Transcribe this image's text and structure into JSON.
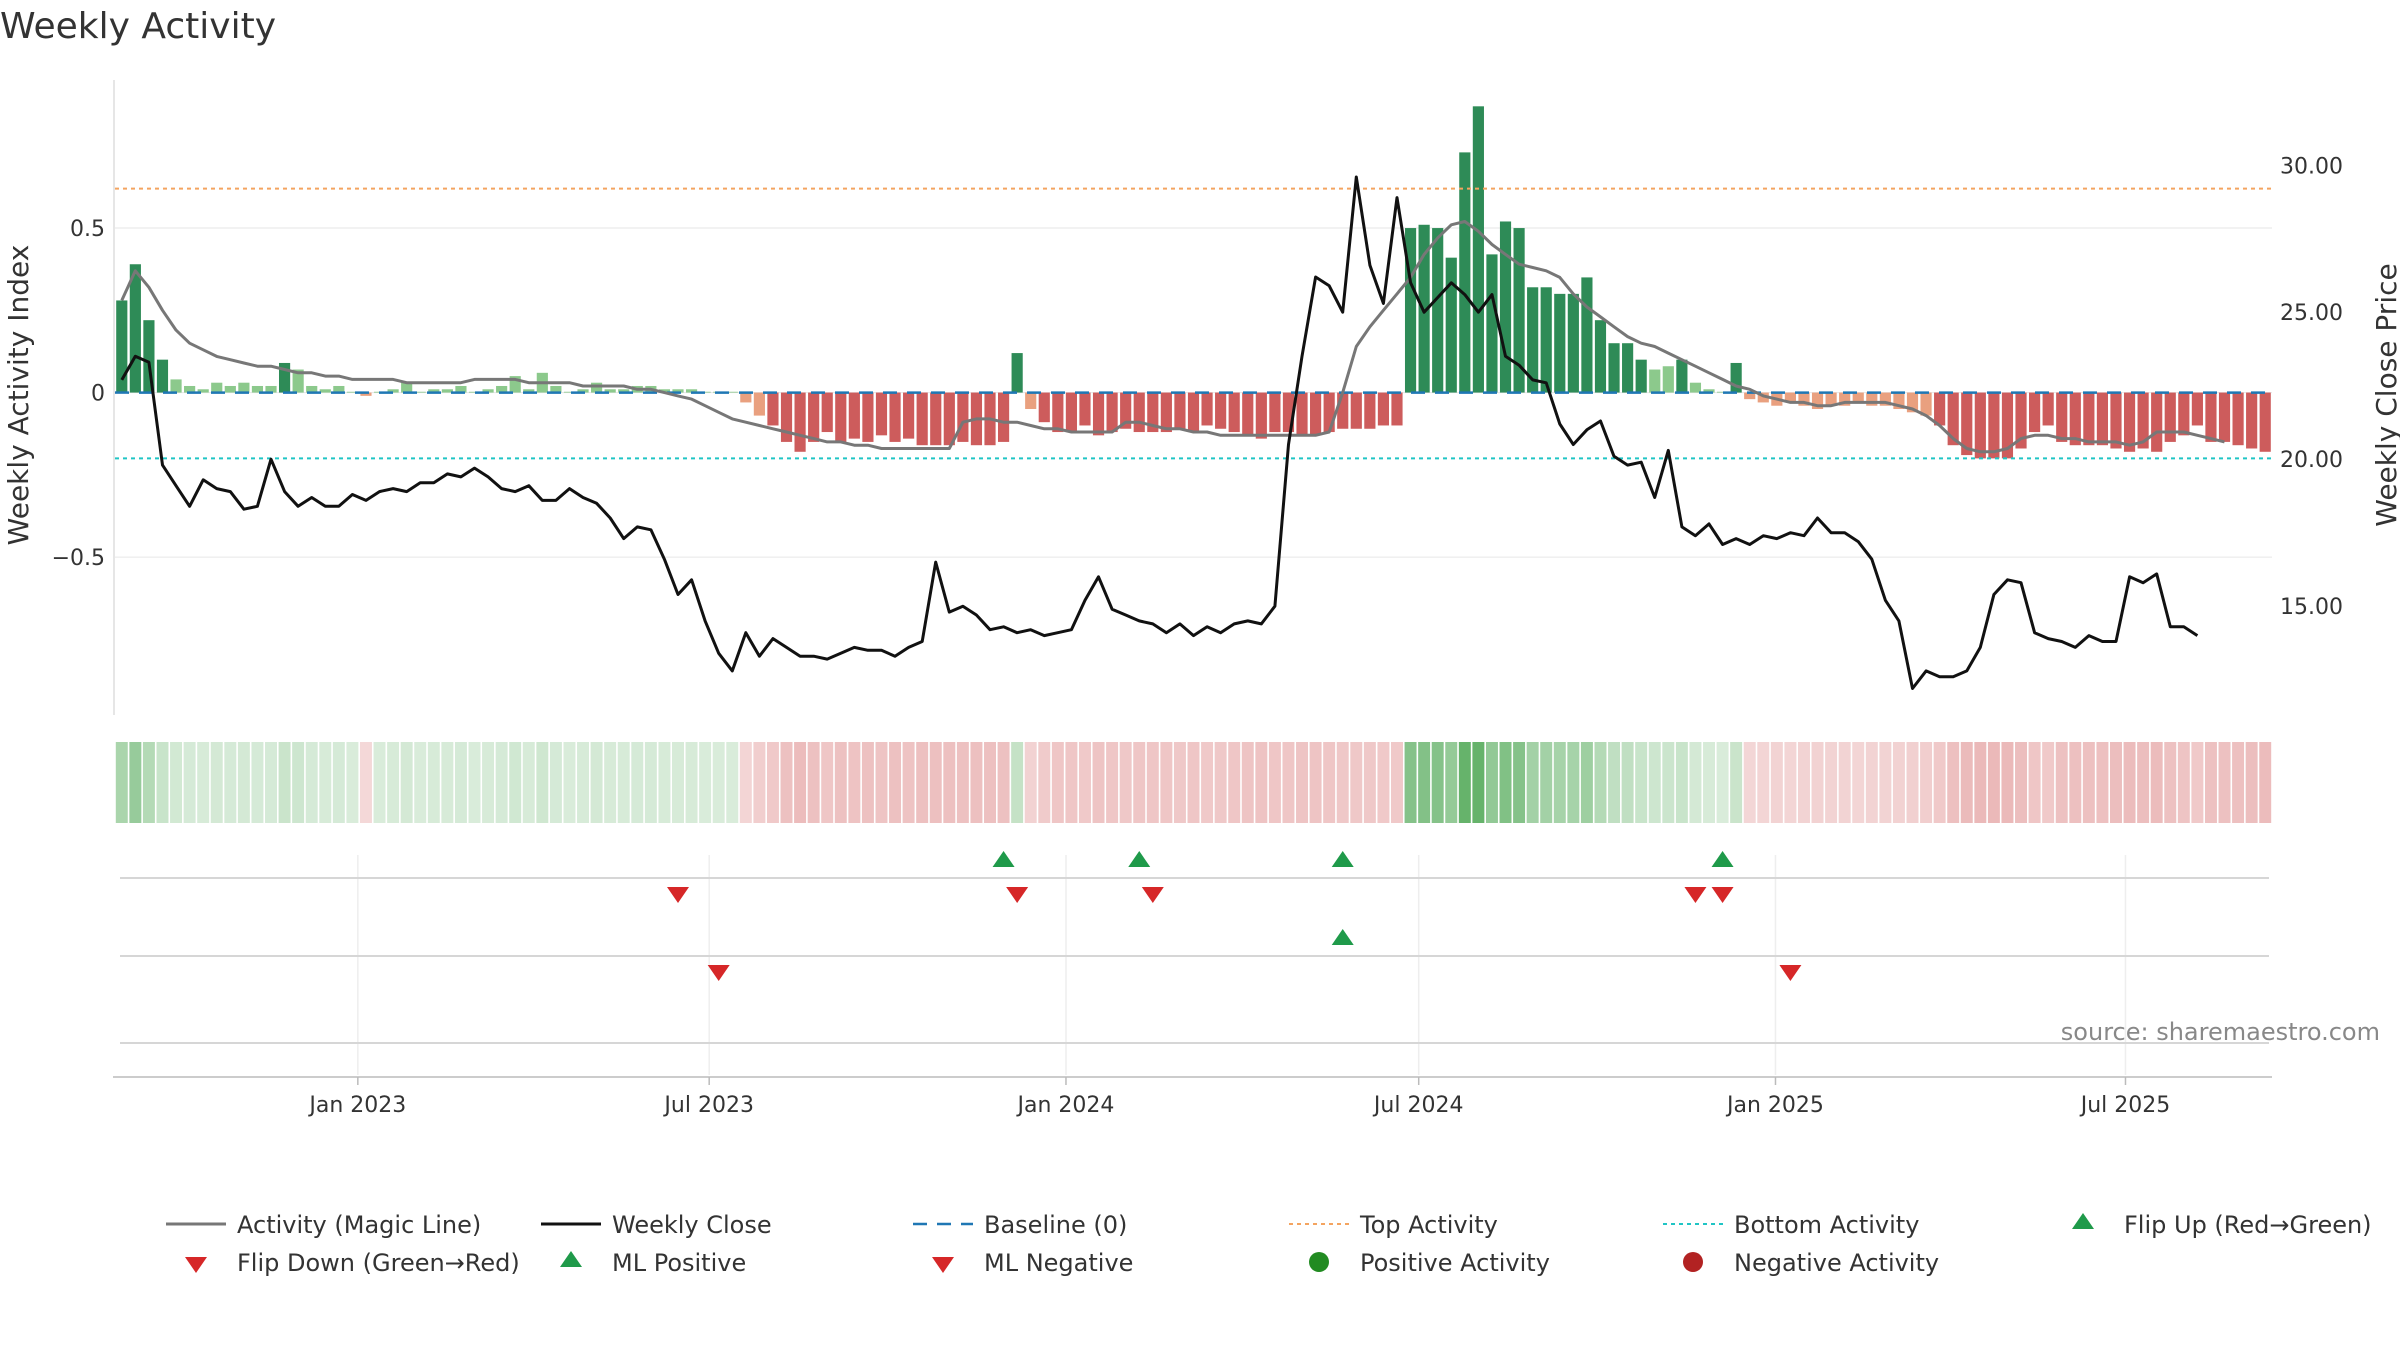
{
  "chart_data": {
    "type": "bar",
    "title": "Weekly Activity",
    "ylabel": "Weekly Activity Index",
    "y2label": "Weekly Close Price",
    "ylim": [
      -0.98,
      0.95
    ],
    "y2lim": [
      11.3,
      32.9
    ],
    "y_ticks": [
      {
        "value": 0.5,
        "label": "0.5"
      },
      {
        "value": 0,
        "label": "0"
      },
      {
        "value": -0.5,
        "label": "−0.5"
      }
    ],
    "y2_ticks": [
      {
        "value": 30,
        "label": "30.00"
      },
      {
        "value": 25,
        "label": "25.00"
      },
      {
        "value": 20,
        "label": "20.00"
      },
      {
        "value": 15,
        "label": "15.00"
      }
    ],
    "x_ticks": [
      {
        "week": 17.4,
        "label": "Jan 2023"
      },
      {
        "week": 43.3,
        "label": "Jul 2023"
      },
      {
        "week": 69.6,
        "label": "Jan 2024"
      },
      {
        "week": 95.6,
        "label": "Jul 2024"
      },
      {
        "week": 121.9,
        "label": "Jan 2025"
      },
      {
        "week": 147.7,
        "label": "Jul 2025"
      }
    ],
    "top_activity": 0.62,
    "bottom_activity": -0.2,
    "grid": true,
    "source_note": "source: sharemaestro.com",
    "colors": {
      "pos_strong": "#2e8b57",
      "pos_light": "#8cc98c",
      "neg_strong": "#cd5c5c",
      "neg_light": "#e9a07f",
      "magic_line": "#777777",
      "close_line": "#111111",
      "baseline": "#1f77b4",
      "top_line": "#f4a460",
      "bottom_line": "#20c5c5",
      "marker_up": "#1f9a4a",
      "marker_down": "#d62728",
      "pos_dot": "#228b22",
      "neg_dot": "#b22222",
      "strip_pos": "#66b36b",
      "strip_neg": "#d46a6a"
    },
    "series": [
      {
        "name": "Activity (Magic Line)",
        "values": [
          0.28,
          0.37,
          0.32,
          0.25,
          0.19,
          0.15,
          0.13,
          0.11,
          0.1,
          0.09,
          0.08,
          0.08,
          0.07,
          0.06,
          0.06,
          0.05,
          0.05,
          0.04,
          0.04,
          0.04,
          0.04,
          0.03,
          0.03,
          0.03,
          0.03,
          0.03,
          0.04,
          0.04,
          0.04,
          0.04,
          0.03,
          0.03,
          0.03,
          0.03,
          0.02,
          0.02,
          0.02,
          0.02,
          0.01,
          0.01,
          0.0,
          -0.01,
          -0.02,
          -0.04,
          -0.06,
          -0.08,
          -0.09,
          -0.1,
          -0.11,
          -0.12,
          -0.13,
          -0.14,
          -0.15,
          -0.15,
          -0.16,
          -0.16,
          -0.17,
          -0.17,
          -0.17,
          -0.17,
          -0.17,
          -0.17,
          -0.09,
          -0.08,
          -0.08,
          -0.09,
          -0.09,
          -0.1,
          -0.11,
          -0.11,
          -0.12,
          -0.12,
          -0.12,
          -0.12,
          -0.09,
          -0.09,
          -0.1,
          -0.11,
          -0.11,
          -0.12,
          -0.12,
          -0.13,
          -0.13,
          -0.13,
          -0.13,
          -0.13,
          -0.13,
          -0.13,
          -0.13,
          -0.12,
          0.0,
          0.14,
          0.2,
          0.25,
          0.3,
          0.35,
          0.42,
          0.47,
          0.51,
          0.52,
          0.49,
          0.45,
          0.42,
          0.39,
          0.38,
          0.37,
          0.35,
          0.3,
          0.26,
          0.23,
          0.2,
          0.17,
          0.15,
          0.14,
          0.12,
          0.1,
          0.08,
          0.06,
          0.04,
          0.02,
          0.01,
          -0.01,
          -0.02,
          -0.03,
          -0.03,
          -0.04,
          -0.04,
          -0.03,
          -0.03,
          -0.03,
          -0.03,
          -0.04,
          -0.05,
          -0.07,
          -0.1,
          -0.14,
          -0.17,
          -0.18,
          -0.18,
          -0.17,
          -0.14,
          -0.13,
          -0.13,
          -0.14,
          -0.14,
          -0.15,
          -0.15,
          -0.15,
          -0.16,
          -0.15,
          -0.12,
          -0.12,
          -0.12,
          -0.13,
          -0.14,
          -0.15
        ]
      },
      {
        "name": "Weekly Close",
        "values": [
          22.7,
          23.5,
          23.3,
          19.8,
          19.1,
          18.4,
          19.3,
          19.0,
          18.9,
          18.3,
          18.4,
          20.0,
          18.9,
          18.4,
          18.7,
          18.4,
          18.4,
          18.8,
          18.6,
          18.9,
          19.0,
          18.9,
          19.2,
          19.2,
          19.5,
          19.4,
          19.7,
          19.4,
          19.0,
          18.9,
          19.1,
          18.6,
          18.6,
          19.0,
          18.7,
          18.5,
          18.0,
          17.3,
          17.7,
          17.6,
          16.6,
          15.4,
          15.9,
          14.5,
          13.4,
          12.8,
          14.1,
          13.3,
          13.9,
          13.6,
          13.3,
          13.3,
          13.2,
          13.4,
          13.6,
          13.5,
          13.5,
          13.3,
          13.6,
          13.8,
          16.5,
          14.8,
          15.0,
          14.7,
          14.2,
          14.3,
          14.1,
          14.2,
          14.0,
          14.1,
          14.2,
          15.2,
          16.0,
          14.9,
          14.7,
          14.5,
          14.4,
          14.1,
          14.4,
          14.0,
          14.3,
          14.1,
          14.4,
          14.5,
          14.4,
          15.0,
          20.5,
          23.5,
          26.2,
          25.9,
          25.0,
          29.6,
          26.6,
          25.3,
          28.9,
          26.0,
          25.0,
          25.5,
          26.0,
          25.6,
          25.0,
          25.6,
          23.5,
          23.2,
          22.7,
          22.6,
          21.2,
          20.5,
          21.0,
          21.3,
          20.1,
          19.8,
          19.9,
          18.7,
          20.3,
          17.7,
          17.4,
          17.8,
          17.1,
          17.3,
          17.1,
          17.4,
          17.3,
          17.5,
          17.4,
          18.0,
          17.5,
          17.5,
          17.2,
          16.6,
          15.2,
          14.5,
          12.2,
          12.8,
          12.6,
          12.6,
          12.8,
          13.6,
          15.4,
          15.9,
          15.8,
          14.1,
          13.9,
          13.8,
          13.6,
          14.0,
          13.8,
          13.8,
          16.0,
          15.8,
          16.1,
          14.3,
          14.3,
          14.0
        ]
      },
      {
        "name": "Weekly Activity",
        "values": [
          0.28,
          0.39,
          0.22,
          0.1,
          0.04,
          0.02,
          0.01,
          0.03,
          0.02,
          0.03,
          0.02,
          0.02,
          0.09,
          0.07,
          0.02,
          0.01,
          0.02,
          0.0,
          -0.01,
          0.0,
          0.01,
          0.03,
          0.0,
          0.01,
          0.01,
          0.02,
          0.0,
          0.01,
          0.02,
          0.05,
          0.01,
          0.06,
          0.02,
          0.0,
          0.01,
          0.03,
          0.01,
          0.01,
          0.02,
          0.02,
          0.01,
          0.01,
          0.01,
          0.0,
          0.0,
          0.0,
          -0.03,
          -0.07,
          -0.1,
          -0.15,
          -0.18,
          -0.15,
          -0.12,
          -0.15,
          -0.14,
          -0.15,
          -0.13,
          -0.15,
          -0.14,
          -0.16,
          -0.16,
          -0.16,
          -0.15,
          -0.16,
          -0.16,
          -0.15,
          0.12,
          -0.05,
          -0.09,
          -0.12,
          -0.12,
          -0.1,
          -0.13,
          -0.12,
          -0.11,
          -0.12,
          -0.12,
          -0.12,
          -0.11,
          -0.12,
          -0.1,
          -0.11,
          -0.12,
          -0.13,
          -0.14,
          -0.12,
          -0.12,
          -0.13,
          -0.13,
          -0.12,
          -0.11,
          -0.11,
          -0.11,
          -0.1,
          -0.1,
          0.5,
          0.51,
          0.5,
          0.41,
          0.73,
          0.87,
          0.42,
          0.52,
          0.5,
          0.32,
          0.32,
          0.3,
          0.3,
          0.35,
          0.22,
          0.15,
          0.15,
          0.1,
          0.07,
          0.08,
          0.1,
          0.03,
          0.01,
          0.0,
          0.09,
          -0.02,
          -0.03,
          -0.04,
          -0.03,
          -0.04,
          -0.05,
          -0.04,
          -0.04,
          -0.03,
          -0.04,
          -0.04,
          -0.05,
          -0.06,
          -0.07,
          -0.1,
          -0.16,
          -0.19,
          -0.2,
          -0.2,
          -0.2,
          -0.17,
          -0.12,
          -0.1,
          -0.15,
          -0.16,
          -0.16,
          -0.16,
          -0.17,
          -0.18,
          -0.17,
          -0.18,
          -0.15,
          -0.13,
          -0.1,
          -0.15,
          -0.15,
          -0.16,
          -0.17,
          -0.18
        ]
      }
    ],
    "markers": [
      {
        "name": "Flip Up (Red→Green)",
        "row": 1,
        "kind": "up",
        "weeks": [
          65,
          75,
          90,
          118
        ]
      },
      {
        "name": "Flip Down (Green→Red)",
        "row": 1,
        "kind": "down",
        "weeks": [
          41,
          66,
          76,
          116,
          118
        ]
      },
      {
        "name": "ML Positive",
        "row": 2,
        "kind": "up",
        "weeks": [
          90
        ]
      },
      {
        "name": "ML Negative",
        "row": 2,
        "kind": "down",
        "weeks": [
          44,
          123
        ]
      },
      {
        "name": "Positive Activity",
        "row": 3,
        "kind": "dot-pos",
        "weeks": []
      },
      {
        "name": "Negative Activity",
        "row": 3,
        "kind": "dot-neg",
        "weeks": []
      }
    ],
    "legend": {
      "placement": "bottom",
      "items": [
        {
          "label": "Activity (Magic Line)",
          "symbol": "line-gray"
        },
        {
          "label": "Weekly Close",
          "symbol": "line-black"
        },
        {
          "label": "Baseline (0)",
          "symbol": "dash-blue"
        },
        {
          "label": "Top Activity",
          "symbol": "dot-orange"
        },
        {
          "label": "Bottom Activity",
          "symbol": "dot-cyan"
        },
        {
          "label": "Flip Up (Red→Green)",
          "symbol": "tri-up"
        },
        {
          "label": "Flip Down (Green→Red)",
          "symbol": "tri-down"
        },
        {
          "label": "ML Positive",
          "symbol": "tri-up"
        },
        {
          "label": "ML Negative",
          "symbol": "tri-down"
        },
        {
          "label": "Positive Activity",
          "symbol": "circle-green"
        },
        {
          "label": "Negative Activity",
          "symbol": "circle-red"
        }
      ]
    }
  }
}
